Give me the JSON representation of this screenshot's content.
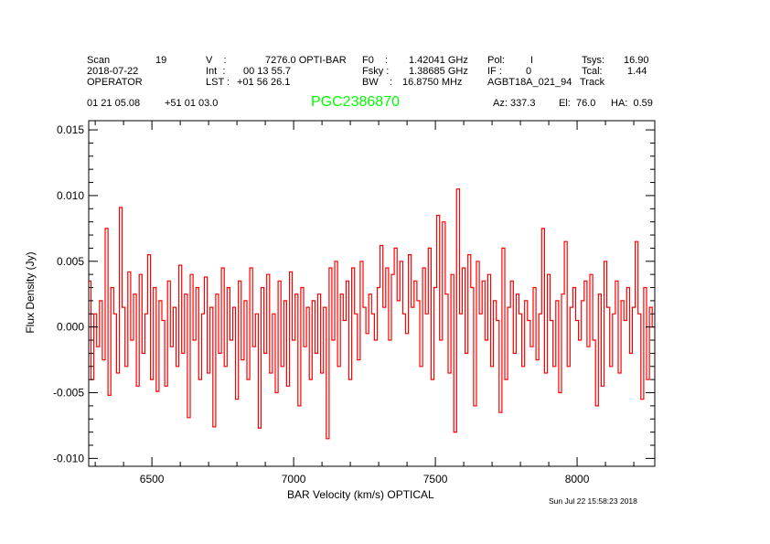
{
  "header": {
    "row1": {
      "scan_label": "Scan",
      "scan": "19",
      "v_label": "V    :",
      "v": "7276.0 OPTI-BAR",
      "f0_label": "F0    :",
      "f0": "1.42041 GHz",
      "pol_label": "Pol:",
      "pol": "I",
      "tsys_label": "Tsys:",
      "tsys": "16.90"
    },
    "row2": {
      "date": "2018-07-22",
      "int_label": "Int  :",
      "int": "00 13 55.7",
      "fsky_label": "Fsky :",
      "fsky": "1.38685 GHz",
      "if_label": "IF :",
      "if": "0",
      "tcal_label": "Tcal:",
      "tcal": "1.44"
    },
    "row3": {
      "observer": "OPERATOR",
      "lst_label": "LST :",
      "lst": "+01 56 26.1",
      "bw_label": "BW    :",
      "bw": "16.8750 MHz",
      "project": "AGBT18A_021_94",
      "procedure": "Track"
    },
    "row4": {
      "ra": "01 21 05.08",
      "dec": "+51 01 03.0",
      "source": "PGC2386870",
      "az": "Az: 337.3",
      "el": "El:  76.0",
      "ha": "HA:  0.59"
    },
    "timestamp": "Sun Jul 22 15:58:23 2018"
  },
  "colors": {
    "source": "#00ff00",
    "spectrum": "#ff0000",
    "axes": "#000000"
  },
  "chart_data": {
    "type": "line",
    "style": "histogram",
    "title": "PGC2386870",
    "xlabel": "BAR Velocity (km/s) OPTICAL",
    "ylabel": "Flux Density (Jy)",
    "xlim": [
      6277,
      8274
    ],
    "ylim": [
      -0.0106,
      0.0157
    ],
    "xticks": [
      6500,
      7000,
      7500,
      8000
    ],
    "xtick_labels": [
      "6500",
      "7000",
      "7500",
      "8000"
    ],
    "yticks": [
      -0.01,
      -0.005,
      0.0,
      0.005,
      0.01,
      0.015
    ],
    "ytick_labels": [
      "-0.010",
      "-0.005",
      "0.000",
      "0.005",
      "0.010",
      "0.015"
    ],
    "grid": false,
    "x_start": 6280,
    "x_step": 10,
    "series": [
      {
        "name": "spectrum",
        "values": [
          0.0035,
          -0.004,
          0.001,
          -0.0015,
          0.002,
          -0.0025,
          0.0075,
          -0.0052,
          0.003,
          0.001,
          -0.0035,
          0.0091,
          0.0015,
          -0.003,
          0.0042,
          -0.001,
          0.0025,
          -0.0045,
          0.004,
          -0.002,
          0.001,
          0.0055,
          -0.004,
          0.003,
          -0.0049,
          0.002,
          0.0005,
          -0.0045,
          0.0035,
          -0.0015,
          0.0015,
          -0.003,
          0.0047,
          -0.002,
          0.0025,
          -0.0069,
          0.004,
          -0.001,
          0.003,
          -0.004,
          0.001,
          0.0038,
          -0.0035,
          0.0015,
          -0.0076,
          0.0025,
          -0.002,
          0.0045,
          -0.003,
          0.003,
          -0.001,
          0.0015,
          -0.0055,
          0.0035,
          -0.0025,
          0.002,
          -0.004,
          0.0045,
          -0.0015,
          0.001,
          -0.0077,
          0.003,
          -0.002,
          0.004,
          -0.0035,
          0.001,
          -0.005,
          0.0035,
          -0.003,
          0.002,
          -0.0045,
          0.0042,
          -0.001,
          0.0025,
          -0.006,
          0.003,
          -0.0015,
          0.0015,
          -0.004,
          0.002,
          -0.002,
          0.0025,
          -0.0035,
          0.0015,
          -0.0085,
          0.0045,
          -0.001,
          0.005,
          -0.003,
          0.0025,
          0.0005,
          0.0035,
          -0.004,
          0.0045,
          0.001,
          -0.0025,
          0.005,
          0.0015,
          -0.0005,
          0.0025,
          0.001,
          -0.001,
          0.003,
          0.0062,
          0.0015,
          0.0045,
          -0.001,
          0.004,
          0.006,
          0.002,
          0.005,
          0.001,
          -0.0005,
          0.0055,
          0.0015,
          0.0035,
          0.002,
          -0.003,
          0.0045,
          0.001,
          0.006,
          -0.004,
          0.003,
          0.0085,
          -0.001,
          0.008,
          0.0025,
          -0.0035,
          0.004,
          -0.008,
          0.0105,
          0.001,
          0.0045,
          -0.002,
          0.0055,
          0.003,
          -0.006,
          0.005,
          0.001,
          0.0035,
          -0.001,
          0.004,
          -0.003,
          0.002,
          0.0005,
          -0.0065,
          0.006,
          -0.004,
          0.0015,
          0.0035,
          -0.002,
          0.0025,
          0.001,
          -0.003,
          0.002,
          0.0005,
          -0.0015,
          0.003,
          -0.0025,
          0.001,
          0.0075,
          -0.0035,
          0.004,
          0.0005,
          -0.003,
          0.002,
          -0.005,
          0.0025,
          0.0065,
          -0.003,
          0.0015,
          0.003,
          0.0005,
          -0.001,
          0.002,
          0.0035,
          -0.0015,
          0.004,
          -0.001,
          -0.006,
          0.0025,
          -0.0045,
          0.005,
          0.0015,
          -0.003,
          0.001,
          0.0035,
          -0.0035,
          0.002,
          0.0005,
          0.003,
          -0.002,
          0.0015,
          0.0065,
          0.001,
          -0.0055,
          0.003,
          -0.004,
          0.0015,
          0.0
        ]
      }
    ]
  }
}
